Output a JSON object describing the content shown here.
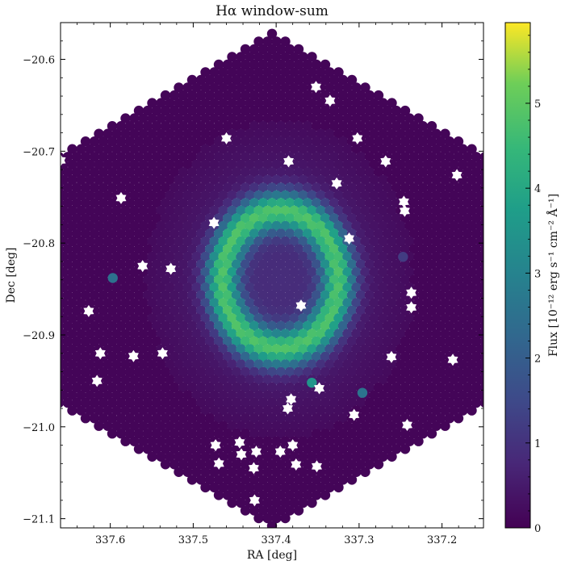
{
  "chart_data": {
    "type": "scatter",
    "title": "Hα window-sum",
    "xlabel": "RA [deg]",
    "ylabel": "Dec [deg]",
    "xlim": [
      337.66,
      337.15
    ],
    "ylim": [
      -21.11,
      -20.56
    ],
    "x_ticks": [
      337.6,
      337.5,
      337.4,
      337.3,
      337.2
    ],
    "x_tick_labels": [
      "337.6",
      "337.5",
      "337.4",
      "337.3",
      "337.2"
    ],
    "y_ticks": [
      -20.6,
      -20.7,
      -20.8,
      -20.9,
      -21.0,
      -21.1
    ],
    "y_tick_labels": [
      "−20.6",
      "−20.7",
      "−20.8",
      "−20.9",
      "−21.0",
      "−21.1"
    ],
    "colorbar": {
      "label": "Flux [10⁻¹² erg s⁻¹ cm⁻² Å⁻¹]",
      "range": [
        0,
        5.95
      ],
      "ticks": [
        0,
        1,
        2,
        3,
        4,
        5
      ],
      "tick_labels": [
        "0",
        "1",
        "2",
        "3",
        "4",
        "5"
      ],
      "colormap": "viridis"
    },
    "grid": false,
    "field": {
      "shape": "hexagon",
      "center": [
        337.405,
        -20.84
      ],
      "fiber_spacing_deg": 0.0087
    },
    "ring": {
      "center": [
        337.395,
        -20.84
      ],
      "semi_axes_deg": [
        0.07,
        0.075
      ],
      "peak_flux": 4.2,
      "hotspots": [
        {
          "ra": 337.435,
          "dec": -20.778,
          "flux": 5.9
        },
        {
          "ra": 337.365,
          "dec": -20.905,
          "flux": 4.8
        }
      ]
    },
    "isolated_spots": [
      {
        "ra": 337.597,
        "dec": -20.838,
        "flux": 2.5
      },
      {
        "ra": 337.357,
        "dec": -20.952,
        "flux": 3.5
      },
      {
        "ra": 337.296,
        "dec": -20.963,
        "flux": 2.6
      },
      {
        "ra": 337.247,
        "dec": -20.815,
        "flux": 1.2
      }
    ],
    "masked_positions": [
      [
        337.352,
        -20.63
      ],
      [
        337.335,
        -20.645
      ],
      [
        337.46,
        -20.686
      ],
      [
        337.302,
        -20.686
      ],
      [
        337.268,
        -20.711
      ],
      [
        337.66,
        -20.71
      ],
      [
        337.385,
        -20.711
      ],
      [
        337.182,
        -20.726
      ],
      [
        337.327,
        -20.735
      ],
      [
        337.246,
        -20.755
      ],
      [
        337.245,
        -20.765
      ],
      [
        337.587,
        -20.751
      ],
      [
        337.475,
        -20.778
      ],
      [
        337.561,
        -20.825
      ],
      [
        337.527,
        -20.828
      ],
      [
        337.37,
        -20.868
      ],
      [
        337.312,
        -20.795
      ],
      [
        337.237,
        -20.854
      ],
      [
        337.237,
        -20.87
      ],
      [
        337.626,
        -20.874
      ],
      [
        337.382,
        -20.97
      ],
      [
        337.612,
        -20.92
      ],
      [
        337.572,
        -20.923
      ],
      [
        337.537,
        -20.92
      ],
      [
        337.386,
        -20.98
      ],
      [
        337.348,
        -20.958
      ],
      [
        337.261,
        -20.924
      ],
      [
        337.187,
        -20.927
      ],
      [
        337.473,
        -21.02
      ],
      [
        337.444,
        -21.017
      ],
      [
        337.442,
        -21.03
      ],
      [
        337.424,
        -21.027
      ],
      [
        337.469,
        -21.04
      ],
      [
        337.38,
        -21.02
      ],
      [
        337.376,
        -21.041
      ],
      [
        337.351,
        -21.043
      ],
      [
        337.427,
        -21.045
      ],
      [
        337.395,
        -21.027
      ],
      [
        337.306,
        -20.987
      ],
      [
        337.242,
        -20.998
      ],
      [
        337.616,
        -20.95
      ],
      [
        337.426,
        -21.08
      ]
    ]
  }
}
